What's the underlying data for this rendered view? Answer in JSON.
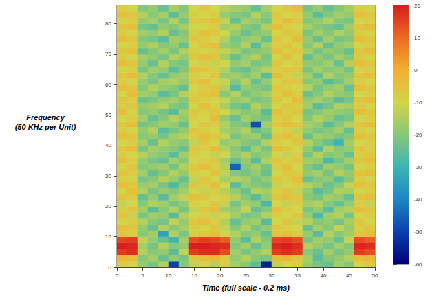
{
  "chart_data": {
    "type": "heatmap",
    "x_label": "Time (full scale - 0.2 ms)",
    "y_label": [
      "Frequency",
      "(50 KHz per Unit)"
    ],
    "xlim": [
      0,
      50
    ],
    "xticks": [
      0,
      5,
      10,
      15,
      20,
      25,
      30,
      35,
      40,
      45,
      50
    ],
    "ylim": [
      0,
      86
    ],
    "yticks": [
      0,
      10,
      20,
      30,
      40,
      50,
      60,
      70,
      80
    ],
    "grid": false,
    "x_edges": [
      0,
      2,
      4,
      6,
      8,
      10,
      12,
      14,
      16,
      18,
      20,
      22,
      24,
      26,
      28,
      30,
      32,
      34,
      36,
      38,
      40,
      42,
      44,
      46,
      48,
      50
    ],
    "y_edges": [
      0,
      2,
      4,
      6,
      8,
      10,
      12,
      14,
      16,
      18,
      20,
      22,
      24,
      26,
      28,
      30,
      32,
      34,
      36,
      38,
      40,
      42,
      44,
      46,
      48,
      50,
      52,
      54,
      56,
      58,
      60,
      62,
      64,
      66,
      68,
      70,
      72,
      74,
      76,
      78,
      80,
      82,
      84,
      86
    ],
    "colorbar": {
      "range": [
        -60,
        20
      ],
      "ticks": [
        -60,
        -50,
        -40,
        -30,
        -20,
        -10,
        0,
        10,
        20
      ]
    },
    "cells": [
      [
        -8,
        -10,
        -18,
        -22,
        -14,
        -50,
        -20,
        -12,
        -10,
        -14,
        -8,
        -16,
        -20,
        -26,
        -55,
        -12,
        -10,
        -8,
        -18,
        -22,
        -24,
        -16,
        -20,
        -10,
        -6
      ],
      [
        -2,
        -4,
        -20,
        -16,
        -24,
        -18,
        -22,
        -6,
        -4,
        -2,
        -8,
        -18,
        -14,
        -20,
        -22,
        -4,
        -2,
        -6,
        -16,
        -26,
        -20,
        -18,
        -14,
        -4,
        -2
      ],
      [
        16,
        18,
        -14,
        -20,
        -18,
        -26,
        -12,
        16,
        18,
        18,
        14,
        -16,
        -22,
        -18,
        -14,
        16,
        18,
        16,
        -20,
        -24,
        -16,
        -22,
        -18,
        16,
        14
      ],
      [
        20,
        19,
        -16,
        -22,
        -14,
        -20,
        -18,
        20,
        20,
        19,
        18,
        -20,
        -16,
        -24,
        -18,
        19,
        20,
        18,
        -14,
        -18,
        -22,
        -16,
        -20,
        19,
        18
      ],
      [
        15,
        16,
        -12,
        -18,
        -24,
        -30,
        -16,
        14,
        16,
        15,
        12,
        -18,
        -26,
        -14,
        -20,
        15,
        16,
        14,
        -22,
        -16,
        -18,
        -24,
        -12,
        14,
        12
      ],
      [
        -6,
        -8,
        -20,
        -16,
        -34,
        -14,
        -22,
        -8,
        -6,
        -4,
        -10,
        -14,
        -20,
        -18,
        -24,
        -6,
        -4,
        -8,
        -18,
        -26,
        -14,
        -20,
        -16,
        -6,
        -4
      ],
      [
        -4,
        -6,
        -18,
        -24,
        -14,
        -20,
        -16,
        -8,
        -10,
        -6,
        -12,
        -20,
        -14,
        -22,
        -18,
        -6,
        -8,
        -10,
        -24,
        -16,
        -20,
        -12,
        -18,
        -8,
        -6
      ],
      [
        -10,
        -8,
        -14,
        -20,
        -22,
        -12,
        -18,
        -6,
        -4,
        -8,
        -14,
        -24,
        -18,
        -16,
        -26,
        -10,
        -6,
        -12,
        -14,
        -20,
        -18,
        -22,
        -16,
        -6,
        -10
      ],
      [
        -6,
        -12,
        -22,
        -16,
        -18,
        -26,
        -14,
        -10,
        -8,
        -12,
        -10,
        -16,
        -22,
        -20,
        -14,
        -8,
        -10,
        -6,
        -18,
        -28,
        -16,
        -14,
        -22,
        -10,
        -8
      ],
      [
        -8,
        -6,
        -16,
        -26,
        -20,
        -14,
        -22,
        -12,
        -6,
        -4,
        -16,
        -18,
        -12,
        -24,
        -20,
        -4,
        -8,
        -10,
        -22,
        -18,
        -26,
        -16,
        -14,
        -4,
        -6
      ],
      [
        -12,
        -10,
        -20,
        -14,
        -16,
        -22,
        -18,
        -8,
        -10,
        -6,
        -12,
        -22,
        -16,
        -18,
        -28,
        -10,
        -12,
        -8,
        -16,
        -14,
        -20,
        -24,
        -18,
        -8,
        -12
      ],
      [
        -6,
        -8,
        -24,
        -18,
        -26,
        -16,
        -12,
        -4,
        -6,
        -10,
        -8,
        -14,
        -20,
        -26,
        -18,
        -6,
        -4,
        -6,
        -20,
        -22,
        -16,
        -18,
        -24,
        -6,
        -4
      ],
      [
        -10,
        -4,
        -14,
        -22,
        -18,
        -20,
        -16,
        -10,
        -12,
        -8,
        -14,
        -18,
        -24,
        -14,
        -16,
        -8,
        -6,
        -12,
        -18,
        -26,
        -22,
        -14,
        -16,
        -10,
        -8
      ],
      [
        -4,
        -6,
        -18,
        -16,
        -22,
        -28,
        -20,
        -6,
        -8,
        -4,
        -10,
        -26,
        -18,
        -20,
        -22,
        -12,
        -10,
        -8,
        -14,
        -18,
        -24,
        -20,
        -12,
        -4,
        -6
      ],
      [
        -8,
        -10,
        -22,
        -20,
        -14,
        -18,
        -24,
        -12,
        -6,
        -10,
        -16,
        -14,
        -16,
        -22,
        -18,
        -6,
        -8,
        -4,
        -24,
        -20,
        -18,
        -26,
        -20,
        -8,
        -10
      ],
      [
        -6,
        -8,
        -16,
        -24,
        -20,
        -14,
        -18,
        -8,
        -10,
        -6,
        -12,
        -20,
        -22,
        -18,
        -24,
        -10,
        -6,
        -8,
        -18,
        -16,
        -22,
        -14,
        -18,
        -6,
        -4
      ],
      [
        -10,
        -6,
        -20,
        -18,
        -16,
        -22,
        -14,
        -6,
        -4,
        -8,
        -14,
        -45,
        -20,
        -16,
        -22,
        -8,
        -4,
        -10,
        -20,
        -24,
        -16,
        -18,
        -22,
        -10,
        -8
      ],
      [
        -4,
        -8,
        -18,
        -22,
        -24,
        -16,
        -20,
        -10,
        -8,
        -6,
        -16,
        -24,
        -18,
        -26,
        -14,
        -6,
        -8,
        -6,
        -16,
        -18,
        -28,
        -22,
        -16,
        -6,
        -4
      ],
      [
        -8,
        -10,
        -14,
        -18,
        -20,
        -26,
        -16,
        -8,
        -10,
        -12,
        -10,
        -18,
        -14,
        -20,
        -18,
        -10,
        -12,
        -8,
        -22,
        -14,
        -20,
        -18,
        -24,
        -8,
        -6
      ],
      [
        -6,
        -4,
        -22,
        -16,
        -18,
        -20,
        -24,
        -6,
        -8,
        -4,
        -14,
        -20,
        -26,
        -16,
        -22,
        -4,
        -6,
        -10,
        -18,
        -26,
        -14,
        -20,
        -18,
        -6,
        -8
      ],
      [
        -10,
        -8,
        -16,
        -24,
        -14,
        -18,
        -20,
        -12,
        -6,
        -10,
        -18,
        -16,
        -20,
        -22,
        -14,
        -8,
        -10,
        -6,
        -14,
        -20,
        -24,
        -30,
        -16,
        -10,
        -8
      ],
      [
        -4,
        -6,
        -20,
        -18,
        -22,
        -16,
        -14,
        -8,
        -4,
        -6,
        -12,
        -22,
        -18,
        -16,
        -24,
        -6,
        -4,
        -8,
        -24,
        -16,
        -18,
        -22,
        -20,
        -4,
        -6
      ],
      [
        -8,
        -10,
        -18,
        -14,
        -26,
        -22,
        -18,
        -6,
        -8,
        -10,
        -16,
        -18,
        -14,
        -24,
        -20,
        -10,
        -8,
        -12,
        -18,
        -22,
        -20,
        -16,
        -24,
        -8,
        -10
      ],
      [
        -6,
        -4,
        -22,
        -20,
        -16,
        -18,
        -24,
        -10,
        -6,
        -8,
        -14,
        -20,
        -22,
        -48,
        -16,
        -6,
        -4,
        -6,
        -16,
        -18,
        -26,
        -20,
        -14,
        -6,
        -4
      ],
      [
        -10,
        -8,
        -16,
        -24,
        -20,
        -14,
        -18,
        -8,
        -10,
        -4,
        -18,
        -24,
        -16,
        -20,
        -22,
        -8,
        -6,
        -10,
        -20,
        -14,
        -18,
        -24,
        -22,
        -10,
        -8
      ],
      [
        -4,
        -10,
        -20,
        -18,
        -22,
        -26,
        -16,
        -6,
        -8,
        -6,
        -10,
        -16,
        -20,
        -18,
        -26,
        -4,
        -8,
        -6,
        -22,
        -20,
        -16,
        -18,
        -20,
        -4,
        -6
      ],
      [
        -8,
        -6,
        -18,
        -16,
        -14,
        -20,
        -22,
        -10,
        -4,
        -8,
        -16,
        -22,
        -24,
        -14,
        -18,
        -10,
        -6,
        -8,
        -16,
        -26,
        -22,
        -14,
        -16,
        -8,
        -10
      ],
      [
        -6,
        -8,
        -24,
        -22,
        -18,
        -16,
        -20,
        -6,
        -8,
        -10,
        -12,
        -18,
        -16,
        -22,
        -20,
        -6,
        -10,
        -4,
        -18,
        -16,
        -20,
        -26,
        -22,
        -6,
        -4
      ],
      [
        -10,
        -4,
        -16,
        -18,
        -26,
        -22,
        -14,
        -8,
        -6,
        -4,
        -20,
        -14,
        -22,
        -18,
        -16,
        -8,
        -4,
        -8,
        -24,
        -20,
        -14,
        -18,
        -20,
        -10,
        -8
      ],
      [
        -4,
        -6,
        -20,
        -14,
        -18,
        -20,
        -24,
        -10,
        -8,
        -6,
        -14,
        -26,
        -18,
        -20,
        -22,
        -6,
        -8,
        -10,
        -14,
        -22,
        -18,
        -16,
        -24,
        -4,
        -6
      ],
      [
        -8,
        -10,
        -18,
        -22,
        -16,
        -14,
        -18,
        -6,
        -4,
        -10,
        -12,
        -20,
        -14,
        -24,
        -18,
        -10,
        -6,
        -6,
        -20,
        -18,
        -26,
        -22,
        -16,
        -8,
        -10
      ],
      [
        -6,
        -4,
        -14,
        -20,
        -24,
        -18,
        -16,
        -8,
        -10,
        -6,
        -18,
        -16,
        -20,
        -16,
        -26,
        -4,
        -8,
        -12,
        -16,
        -24,
        -14,
        -20,
        -18,
        -6,
        -4
      ],
      [
        -10,
        -8,
        -22,
        -16,
        -18,
        -26,
        -20,
        -4,
        -6,
        -8,
        -14,
        -22,
        -24,
        -18,
        -14,
        -8,
        -6,
        -6,
        -22,
        -16,
        -20,
        -18,
        -22,
        -10,
        -8
      ],
      [
        -4,
        -6,
        -18,
        -24,
        -14,
        -20,
        -22,
        -10,
        -8,
        -12,
        -10,
        -18,
        -16,
        -22,
        -20,
        -6,
        -10,
        -8,
        -18,
        -20,
        -16,
        -24,
        -14,
        -4,
        -6
      ],
      [
        -8,
        -10,
        -16,
        -18,
        -22,
        -14,
        -18,
        -6,
        -4,
        -6,
        -16,
        -24,
        -18,
        -14,
        -22,
        -10,
        -4,
        -10,
        -24,
        -18,
        -22,
        -16,
        -20,
        -8,
        -10
      ],
      [
        -6,
        -4,
        -24,
        -20,
        -16,
        -22,
        -14,
        -8,
        -10,
        -8,
        -12,
        -16,
        -22,
        -20,
        -18,
        -4,
        -8,
        -6,
        -16,
        -22,
        -18,
        -20,
        -24,
        -6,
        -4
      ],
      [
        -10,
        -8,
        -18,
        -14,
        -20,
        -18,
        -24,
        -10,
        -6,
        -4,
        -18,
        -20,
        -14,
        -26,
        -16,
        -8,
        -6,
        -10,
        -20,
        -14,
        -24,
        -18,
        -16,
        -10,
        -8
      ],
      [
        -4,
        -6,
        -20,
        -22,
        -26,
        -16,
        -18,
        -6,
        -8,
        -10,
        -14,
        -22,
        -18,
        -16,
        -24,
        -6,
        -10,
        -4,
        -18,
        -24,
        -16,
        -22,
        -20,
        -4,
        -6
      ],
      [
        -8,
        -10,
        -16,
        -18,
        -14,
        -24,
        -20,
        -8,
        -4,
        -6,
        -10,
        -18,
        -24,
        -20,
        -18,
        -10,
        -6,
        -8,
        -22,
        -16,
        -20,
        -14,
        -18,
        -8,
        -10
      ],
      [
        -6,
        -4,
        -22,
        -24,
        -18,
        -20,
        -16,
        -10,
        -10,
        -8,
        -16,
        -14,
        -20,
        -22,
        -14,
        -4,
        -8,
        -10,
        -16,
        -20,
        -22,
        -24,
        -16,
        -6,
        -4
      ],
      [
        -10,
        -8,
        -18,
        -16,
        -22,
        -14,
        -22,
        -6,
        -6,
        -4,
        -12,
        -24,
        -16,
        -18,
        -22,
        -8,
        -4,
        -6,
        -20,
        -18,
        -14,
        -20,
        -22,
        -10,
        -8
      ],
      [
        -4,
        -6,
        -14,
        -20,
        -16,
        -26,
        -18,
        -8,
        -10,
        -8,
        -18,
        -20,
        -22,
        -14,
        -20,
        -6,
        -10,
        -8,
        -18,
        -26,
        -20,
        -16,
        -18,
        -4,
        -6
      ],
      [
        -8,
        -10,
        -20,
        -18,
        -24,
        -16,
        -20,
        -10,
        -6,
        -10,
        -14,
        -16,
        -18,
        -24,
        -16,
        -10,
        -6,
        -4,
        -22,
        -18,
        -24,
        -20,
        -16,
        -8,
        -10
      ]
    ]
  }
}
